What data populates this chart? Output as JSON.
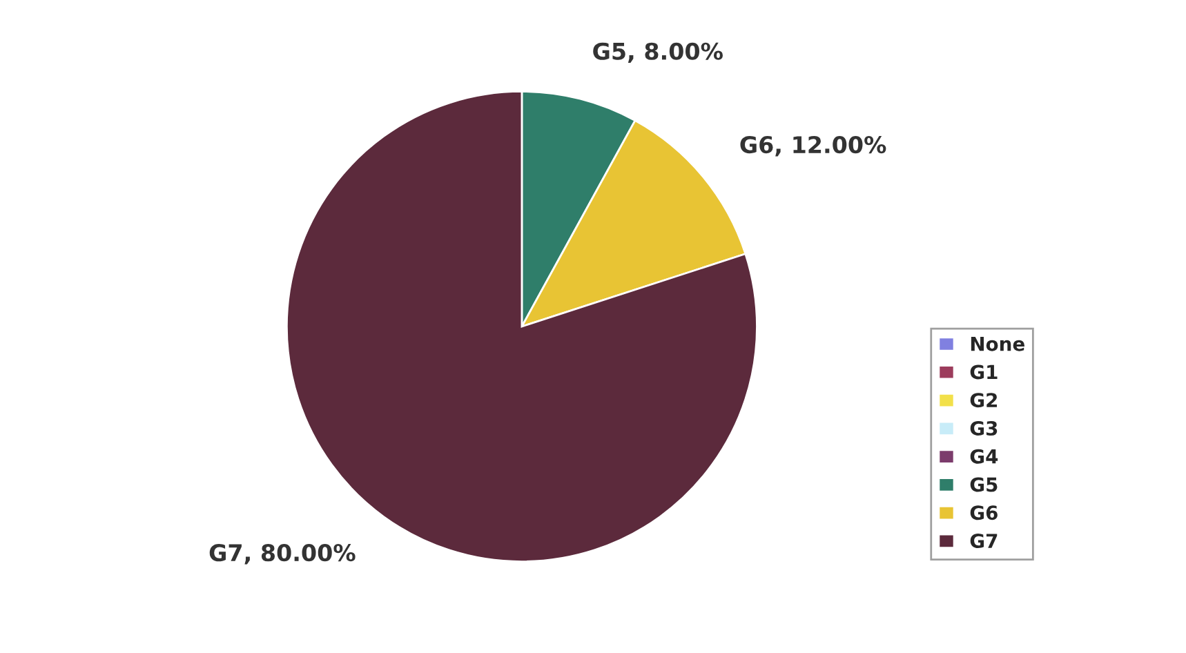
{
  "chart_data": {
    "type": "pie",
    "categories": [
      "None",
      "G1",
      "G2",
      "G3",
      "G4",
      "G5",
      "G6",
      "G7"
    ],
    "values": [
      0,
      0,
      0,
      0,
      0,
      8,
      12,
      80
    ],
    "value_labels": [
      null,
      null,
      null,
      null,
      null,
      "G5, 8.00%",
      "G6, 12.00%",
      "G7, 80.00%"
    ],
    "colors": [
      "#8080e0",
      "#9c3c5c",
      "#f2e04a",
      "#c8ecf8",
      "#7c3c6c",
      "#2f7e6a",
      "#e8c434",
      "#5c2a3c"
    ],
    "legend": "right"
  }
}
